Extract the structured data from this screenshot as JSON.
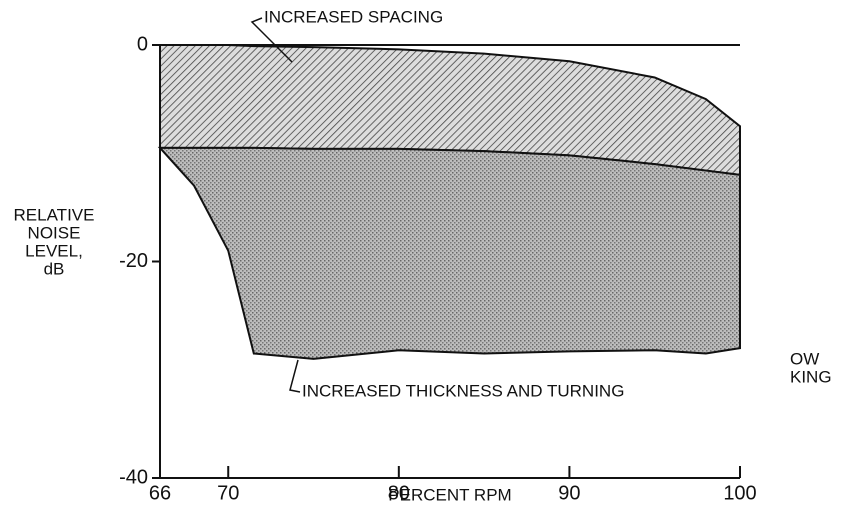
{
  "chart_data": {
    "type": "band",
    "xlabel": "PERCENT RPM",
    "ylabel": [
      "RELATIVE",
      "NOISE",
      "LEVEL,",
      "dB"
    ],
    "annotations": [
      "OW",
      "KING"
    ],
    "x": [
      66,
      68,
      70,
      71.5,
      75,
      80,
      85,
      90,
      95,
      98,
      100
    ],
    "series": [
      {
        "name": "INCREASED SPACING",
        "color": "#555555",
        "fill": "hatch",
        "values": [
          0,
          0,
          0,
          -0.1,
          -0.2,
          -0.4,
          -0.8,
          -1.5,
          -3,
          -5,
          -7.5
        ],
        "lower": [
          -9.5,
          -9.5,
          -9.5,
          -9.5,
          -9.6,
          -9.6,
          -9.8,
          -10.2,
          -11,
          -11.6,
          -12
        ]
      },
      {
        "name": "INCREASED THICKNESS AND TURNING",
        "color": "#9a9a9a",
        "fill": "stipple",
        "values": [
          -9.5,
          -9.5,
          -9.5,
          -9.5,
          -9.6,
          -9.6,
          -9.8,
          -10.2,
          -11,
          -11.6,
          -12
        ],
        "lower": [
          -9.5,
          -13,
          -19,
          -28.5,
          -29,
          -28.2,
          -28.5,
          -28.3,
          -28.2,
          -28.5,
          -28
        ]
      }
    ],
    "hline": 0,
    "xlim": [
      66,
      100
    ],
    "xticks": [
      66,
      70,
      80,
      90,
      100
    ],
    "ylim": [
      -40,
      0
    ],
    "yticks": [
      -40,
      -20,
      0
    ]
  }
}
